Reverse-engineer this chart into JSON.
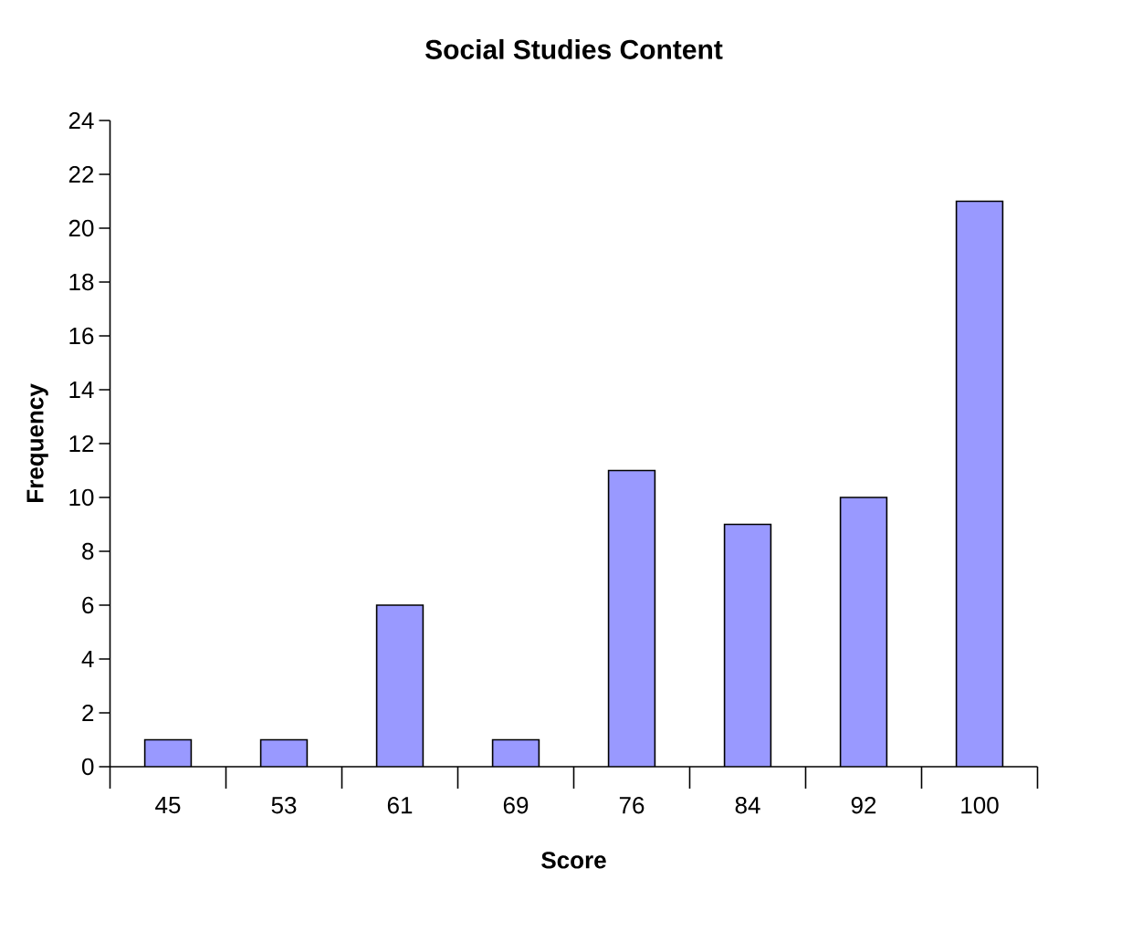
{
  "chart_data": {
    "type": "bar",
    "title": "Social Studies Content",
    "xlabel": "Score",
    "ylabel": "Frequency",
    "categories": [
      "45",
      "53",
      "61",
      "69",
      "76",
      "84",
      "92",
      "100"
    ],
    "values": [
      1,
      1,
      6,
      1,
      11,
      9,
      10,
      21
    ],
    "color": "#9999ff",
    "ylim": [
      0,
      24
    ],
    "yticks": [
      0,
      2,
      4,
      6,
      8,
      10,
      12,
      14,
      16,
      18,
      20,
      22,
      24
    ]
  }
}
